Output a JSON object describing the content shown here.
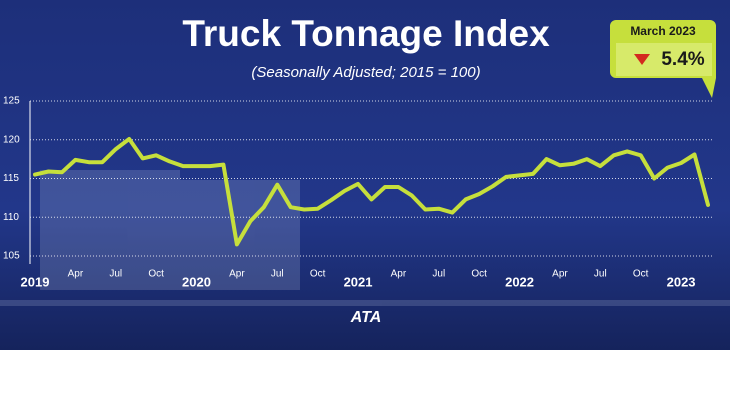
{
  "chart_data": {
    "type": "line",
    "title": "Truck Tonnage Index",
    "subtitle": "(Seasonally Adjusted; 2015 = 100)",
    "categories": [
      "2019",
      null,
      null,
      "Apr",
      null,
      null,
      "Jul",
      null,
      null,
      "Oct",
      null,
      null,
      "2020",
      null,
      null,
      "Apr",
      null,
      null,
      "Jul",
      null,
      null,
      "Oct",
      null,
      null,
      "2021",
      null,
      null,
      "Apr",
      null,
      null,
      "Jul",
      null,
      null,
      "Oct",
      null,
      null,
      "2022",
      null,
      null,
      "Apr",
      null,
      null,
      "Jul",
      null,
      null,
      "Oct",
      null,
      null,
      "2023",
      null,
      null
    ],
    "values": [
      115.5,
      115.9,
      115.8,
      117.4,
      117.1,
      117.1,
      118.8,
      120.1,
      117.6,
      118.0,
      117.2,
      116.6,
      116.6,
      116.6,
      116.8,
      106.5,
      109.5,
      111.3,
      114.2,
      111.3,
      111.0,
      111.1,
      112.2,
      113.4,
      114.3,
      112.3,
      113.9,
      113.9,
      112.8,
      111.0,
      111.1,
      110.6,
      112.3,
      113.0,
      114.0,
      115.2,
      115.4,
      115.6,
      117.5,
      116.7,
      116.9,
      117.5,
      116.6,
      118.0,
      118.5,
      118.0,
      115.0,
      116.4,
      117.0,
      118.1,
      111.6
    ],
    "color": "#c6df3c",
    "ylim": [
      105,
      125
    ],
    "yticks": [
      105,
      110,
      115,
      120,
      125
    ],
    "grid": true,
    "annotation": {
      "label": "March 2023",
      "value": "5.4%"
    },
    "logo": "ATA"
  }
}
